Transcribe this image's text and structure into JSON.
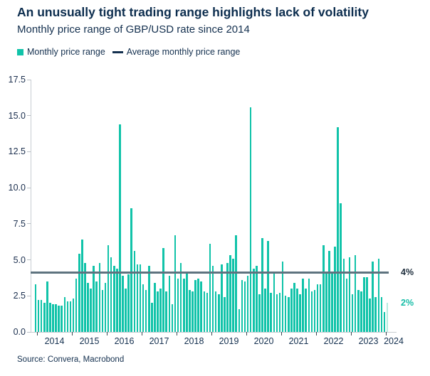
{
  "header": {
    "title": "An unusually tight trading range highlights lack of volatility",
    "subtitle": "Monthly price range of GBP/USD rate since 2014"
  },
  "legend": {
    "items": [
      {
        "label": "Monthly price range",
        "swatch": "teal-square",
        "color": "#11c3a9"
      },
      {
        "label": "Average monthly price range",
        "swatch": "dark-dash",
        "color": "#14304f"
      }
    ]
  },
  "source": {
    "text": "Source: Convera, Macrobond"
  },
  "colors": {
    "bar": "#11c3a9",
    "bar_highlight_latest": "#b4ecdf",
    "average_line": "#5e737f",
    "text_navy": "#14304f",
    "axis_spine": "#c7ccd1"
  },
  "chart_data": {
    "type": "bar",
    "title": "An unusually tight trading range highlights lack of volatility",
    "subtitle": "Monthly price range of GBP/USD rate since 2014",
    "unit": "%",
    "x_start": "2014-01",
    "x_frequency": "monthly",
    "x_year_ticks": [
      2014,
      2015,
      2016,
      2017,
      2018,
      2019,
      2020,
      2021,
      2022,
      2023,
      2024
    ],
    "ylim": [
      0,
      17.5
    ],
    "y_tick_labels": [
      "0.0",
      "2.5",
      "5.0",
      "7.5",
      "10.0",
      "12.5",
      "15.0",
      "17.5"
    ],
    "grid": false,
    "legend_position": "top-left",
    "values": [
      3.3,
      2.2,
      2.2,
      2.0,
      3.5,
      2.0,
      1.9,
      1.9,
      1.8,
      1.8,
      2.4,
      2.1,
      2.1,
      2.3,
      3.7,
      5.4,
      6.4,
      4.8,
      3.4,
      3.0,
      4.6,
      3.5,
      4.8,
      2.9,
      3.4,
      6.0,
      5.2,
      4.6,
      4.4,
      14.4,
      3.9,
      3.0,
      4.0,
      8.6,
      5.6,
      4.7,
      4.7,
      3.3,
      2.9,
      4.6,
      2.0,
      3.4,
      2.8,
      3.0,
      5.8,
      2.8,
      3.9,
      1.9,
      6.7,
      3.7,
      4.8,
      3.7,
      4.2,
      2.9,
      2.8,
      3.6,
      3.7,
      3.5,
      2.8,
      2.7,
      6.1,
      4.6,
      2.8,
      2.6,
      4.7,
      2.4,
      4.8,
      5.3,
      5.1,
      6.7,
      1.6,
      3.6,
      3.5,
      3.9,
      15.6,
      4.4,
      4.6,
      2.6,
      6.5,
      3.0,
      6.3,
      2.7,
      4.2,
      2.6,
      2.7,
      4.9,
      2.5,
      2.4,
      3.0,
      3.4,
      3.0,
      2.6,
      3.7,
      3.0,
      3.7,
      2.8,
      2.9,
      3.3,
      3.3,
      6.0,
      4.1,
      5.6,
      4.1,
      5.9,
      14.2,
      8.9,
      5.1,
      3.7,
      5.2,
      2.6,
      5.3,
      2.9,
      2.8,
      3.8,
      3.8,
      2.3,
      4.9,
      2.4,
      5.1,
      2.4,
      1.4,
      2.0
    ],
    "highlight_last_n": 1,
    "average": {
      "value": 4.1,
      "label": "4%"
    },
    "latest": {
      "value": 2.0,
      "label": "2%"
    }
  }
}
